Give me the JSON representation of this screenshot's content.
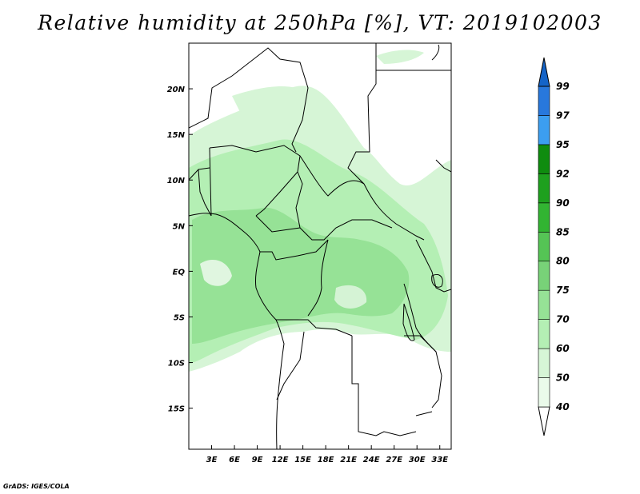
{
  "title": "Relative humidity at 250hPa [%], VT: 2019102003",
  "credit": "GrADS: IGES/COLA",
  "map": {
    "lon_labels": [
      "3E",
      "6E",
      "9E",
      "12E",
      "15E",
      "18E",
      "21E",
      "24E",
      "27E",
      "30E",
      "33E"
    ],
    "lon_values": [
      3,
      6,
      9,
      12,
      15,
      18,
      21,
      24,
      27,
      30,
      33
    ],
    "lat_labels": [
      "20N",
      "15N",
      "10N",
      "5N",
      "EQ",
      "5S",
      "10S",
      "15S"
    ],
    "lat_values": [
      20,
      15,
      10,
      5,
      0,
      -5,
      -10,
      -15
    ],
    "lon_range": [
      0,
      34.5
    ],
    "lat_range": [
      -19.5,
      25
    ]
  },
  "colorbar": {
    "levels": [
      "99",
      "97",
      "95",
      "92",
      "90",
      "85",
      "80",
      "75",
      "70",
      "60",
      "50",
      "40"
    ],
    "colors": [
      "#ffffff",
      "#eafaea",
      "#d6f5d6",
      "#b4efb4",
      "#96e296",
      "#78d278",
      "#55c455",
      "#32b432",
      "#1ea01e",
      "#0f8c0f",
      "#3c9ef0",
      "#2878dc",
      "#1464c8"
    ]
  }
}
